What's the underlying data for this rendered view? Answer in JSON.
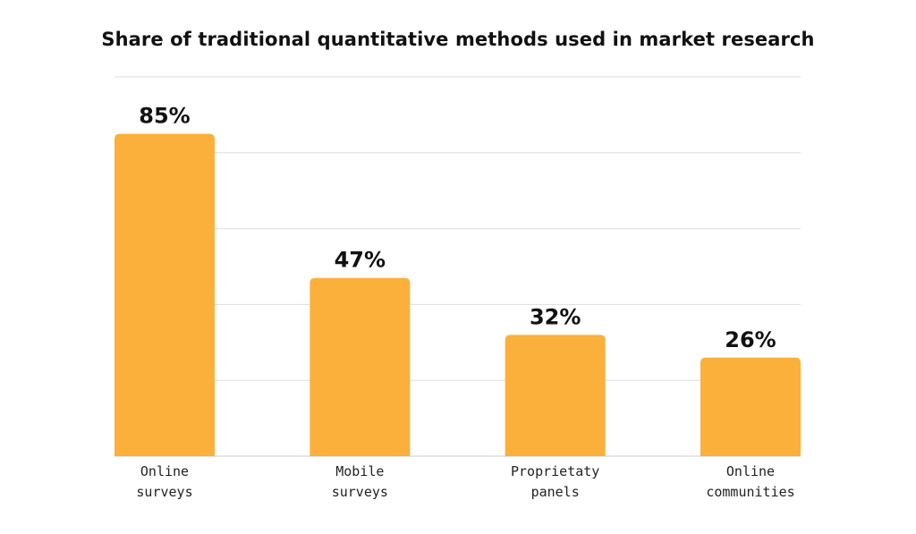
{
  "chart_data": {
    "type": "bar",
    "title": "Share of traditional quantitative methods used in market research",
    "categories": [
      [
        "Online",
        "surveys"
      ],
      [
        "Mobile",
        "surveys"
      ],
      [
        "Proprietaty",
        "panels"
      ],
      [
        "Online",
        "communities"
      ]
    ],
    "values": [
      85,
      47,
      32,
      26
    ],
    "value_labels": [
      "85%",
      "47%",
      "32%",
      "26%"
    ],
    "xlabel": "",
    "ylabel": "",
    "ylim": [
      0,
      100
    ],
    "grid": true,
    "bar_color": "#FBB03B",
    "grid_color": "#DDDDDD"
  }
}
